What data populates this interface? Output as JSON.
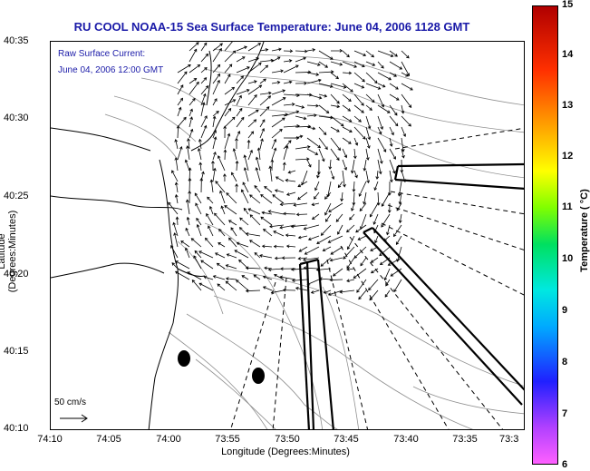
{
  "title": "RU COOL  NOAA-15  Sea Surface Temperature:  June 04, 2006 1128 GMT",
  "annotation": {
    "line1": "Raw Surface Current:",
    "line2": "June 04, 2006 12:00 GMT"
  },
  "scale_label": "50 cm/s",
  "y_axis": {
    "label": "Latitude (Degrees:Minutes)",
    "ticks": [
      "40:35",
      "40:30",
      "40:25",
      "40:20",
      "40:15",
      "40:10"
    ]
  },
  "x_axis": {
    "label": "Longitude (Degrees:Minutes)",
    "ticks": [
      "74:10",
      "74:05",
      "74:00",
      "73:55",
      "73:50",
      "73:45",
      "73:40",
      "73:35",
      "73:3"
    ]
  },
  "colorbar": {
    "label": "Temperature ( °C)",
    "ticks": [
      "15",
      "14",
      "13",
      "12",
      "11",
      "10",
      "9",
      "8",
      "7",
      "6"
    ],
    "min": 6,
    "max": 15
  },
  "colors": {
    "title": "#1a1aa8",
    "coast": "#000000",
    "bathymetry": "#888888"
  }
}
